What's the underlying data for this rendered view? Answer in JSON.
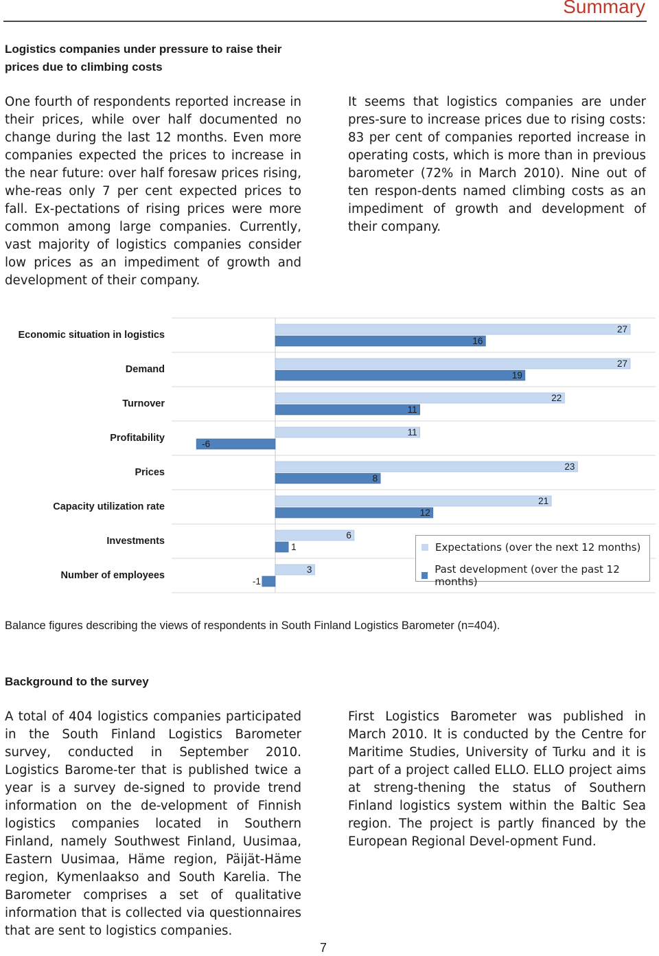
{
  "header": {
    "title": "Summary"
  },
  "section1": {
    "heading": "Logistics companies under pressure to raise their prices due to climbing costs",
    "left_text": "One fourth of respondents reported increase in their prices, while over half documented no change during the last 12 months. Even more companies expected the prices to increase in the near future: over half foresaw prices rising, whe-reas only 7 per cent expected prices to fall. Ex-pectations of rising prices were more common among large companies. Currently, vast majority of logistics companies consider low prices as an impediment of growth and development of their company.",
    "right_text": "It seems that logistics companies are under pres-sure to increase prices due to rising costs: 83 per cent of companies reported increase in operating costs, which is more than in previous barometer (72% in March 2010). Nine out of ten respon-dents named climbing costs as an impediment of growth and development of their company."
  },
  "chart_data": {
    "type": "bar",
    "orientation": "horizontal",
    "categories": [
      "Economic situation in logistics",
      "Demand",
      "Turnover",
      "Profitability",
      "Prices",
      "Capacity utilization rate",
      "Investments",
      "Number of employees"
    ],
    "series": [
      {
        "name": "Expectations (over the next 12 months)",
        "values": [
          27,
          27,
          22,
          11,
          23,
          21,
          6,
          3
        ],
        "color": "#c6d9f1"
      },
      {
        "name": "Past development (over the past 12 months)",
        "values": [
          16,
          19,
          11,
          -6,
          8,
          12,
          1,
          -1
        ],
        "color": "#4f81bd"
      }
    ],
    "value_labels": {
      "expectations": [
        "27",
        "27",
        "22",
        "11",
        "23",
        "21",
        "6",
        "3"
      ],
      "past": [
        "16",
        "19",
        "11",
        "-6",
        "8",
        "12",
        "1",
        "-1"
      ]
    },
    "grid": "horizontal separators",
    "legend_position": "bottom-right"
  },
  "caption": "Balance figures describing the views of respondents in South Finland Logistics Barometer (n=404).",
  "section2": {
    "heading": "Background to the survey",
    "left_text": "A total of 404 logistics companies participated in the South Finland Logistics Barometer survey, conducted in September 2010. Logistics Barome-ter that is published twice a year is a survey de-signed to provide trend information on the de-velopment of Finnish logistics companies located in Southern Finland, namely Southwest Finland, Uusimaa, Eastern Uusimaa, Häme region, Päijät-Häme region, Kymenlaakso and South Karelia. The Barometer comprises a set of qualitative information that is collected via questionnaires that are sent to logistics companies.",
    "right_text": "First Logistics Barometer was published in March 2010. It is conducted by the Centre for Maritime Studies, University of Turku and it is part of a project called ELLO. ELLO project aims at streng-thening the status of Southern Finland logistics system within the Baltic Sea region. The project is partly financed by the European Regional Devel-opment Fund."
  },
  "page_number": "7"
}
